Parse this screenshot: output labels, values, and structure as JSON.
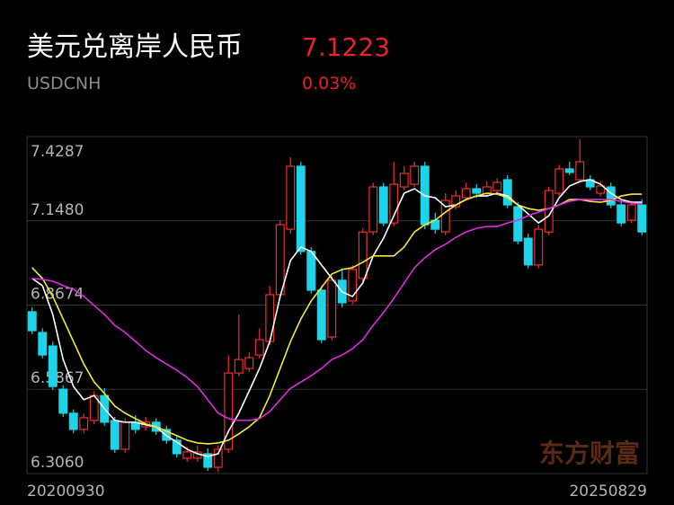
{
  "header": {
    "title": "美元兑离岸人民币",
    "code": "USDCNH",
    "price": "7.1223",
    "change": "0.03%"
  },
  "chart_data": {
    "type": "candlestick",
    "watermark": "东方财富",
    "up_color": "#f0302c",
    "down_color": "#1fd3e8",
    "categories": [
      "20200930",
      null,
      null,
      null,
      null,
      null,
      null,
      null,
      null,
      null,
      null,
      null,
      null,
      null,
      null,
      null,
      null,
      null,
      null,
      null,
      null,
      null,
      null,
      null,
      null,
      null,
      null,
      null,
      null,
      null,
      null,
      null,
      null,
      null,
      null,
      null,
      null,
      null,
      null,
      null,
      null,
      null,
      null,
      null,
      null,
      null,
      null,
      null,
      null,
      null,
      null,
      null,
      null,
      null,
      null,
      null,
      null,
      null,
      null,
      "20250829"
    ],
    "open": [
      6.845,
      6.776,
      6.731,
      6.587,
      6.507,
      6.453,
      6.483,
      6.566,
      6.483,
      6.387,
      6.477,
      6.462,
      6.477,
      6.453,
      6.417,
      6.357,
      6.357,
      6.372,
      6.327,
      6.387,
      6.641,
      6.656,
      6.701,
      6.746,
      6.902,
      7.12,
      7.33,
      7.046,
      6.917,
      6.761,
      6.95,
      6.881,
      6.956,
      7.111,
      7.261,
      7.141,
      7.261,
      7.27,
      7.33,
      7.15,
      7.111,
      7.195,
      7.225,
      7.255,
      7.24,
      7.249,
      7.285,
      7.195,
      7.09,
      7.001,
      7.111,
      7.24,
      7.321,
      7.285,
      7.285,
      7.24,
      7.261,
      7.201,
      7.15,
      7.201
    ],
    "high": [
      6.86,
      6.79,
      6.745,
      6.6,
      6.52,
      6.505,
      6.58,
      6.59,
      6.495,
      6.49,
      6.5,
      6.495,
      6.49,
      6.465,
      6.43,
      6.395,
      6.4,
      6.39,
      6.4,
      6.7,
      6.836,
      6.71,
      6.79,
      6.932,
      7.15,
      7.36,
      7.345,
      7.06,
      6.93,
      6.965,
      6.99,
      7.0,
      7.125,
      7.275,
      7.275,
      7.345,
      7.33,
      7.345,
      7.345,
      7.175,
      7.24,
      7.25,
      7.275,
      7.27,
      7.28,
      7.29,
      7.3,
      7.21,
      7.105,
      7.135,
      7.262,
      7.335,
      7.345,
      7.42,
      7.3,
      7.28,
      7.275,
      7.215,
      7.215,
      7.22
    ],
    "low": [
      6.77,
      6.69,
      6.585,
      6.495,
      6.44,
      6.44,
      6.47,
      6.465,
      6.375,
      6.375,
      6.44,
      6.45,
      6.435,
      6.405,
      6.36,
      6.345,
      6.345,
      6.315,
      6.312,
      6.375,
      6.63,
      6.645,
      6.69,
      6.735,
      6.89,
      7.105,
      7.035,
      6.905,
      6.74,
      6.75,
      6.86,
      6.87,
      6.945,
      7.1,
      7.13,
      7.13,
      7.25,
      7.26,
      7.12,
      7.105,
      7.1,
      7.185,
      7.215,
      7.225,
      7.23,
      7.24,
      7.19,
      7.07,
      6.99,
      6.99,
      7.1,
      7.23,
      7.3,
      7.275,
      7.25,
      7.23,
      7.19,
      7.13,
      7.14,
      7.1
    ],
    "close": [
      6.782,
      6.701,
      6.596,
      6.507,
      6.453,
      6.492,
      6.566,
      6.477,
      6.387,
      6.477,
      6.453,
      6.477,
      6.447,
      6.417,
      6.372,
      6.378,
      6.378,
      6.327,
      6.387,
      6.641,
      6.686,
      6.692,
      6.752,
      6.902,
      7.135,
      7.33,
      7.046,
      6.917,
      6.752,
      6.95,
      6.875,
      6.986,
      7.111,
      7.261,
      7.141,
      7.27,
      7.306,
      7.33,
      7.135,
      7.12,
      7.216,
      7.231,
      7.255,
      7.24,
      7.261,
      7.276,
      7.201,
      7.081,
      7.001,
      7.12,
      7.249,
      7.321,
      7.309,
      7.345,
      7.261,
      7.264,
      7.201,
      7.141,
      7.201,
      7.111
    ],
    "series": [
      {
        "color": "#ffffff",
        "values": [
          6.956,
          6.932,
          6.836,
          6.686,
          6.596,
          6.552,
          6.566,
          6.522,
          6.483,
          6.477,
          6.477,
          6.468,
          6.462,
          6.432,
          6.411,
          6.387,
          6.372,
          6.363,
          6.372,
          6.447,
          6.507,
          6.581,
          6.656,
          6.746,
          6.896,
          7.016,
          7.061,
          7.046,
          7.001,
          6.956,
          6.911,
          6.896,
          6.941,
          7.031,
          7.09,
          7.165,
          7.24,
          7.255,
          7.231,
          7.225,
          7.195,
          7.201,
          7.219,
          7.231,
          7.231,
          7.24,
          7.231,
          7.201,
          7.171,
          7.141,
          7.165,
          7.225,
          7.264,
          7.279,
          7.285,
          7.27,
          7.24,
          7.219,
          7.21,
          7.21
        ]
      },
      {
        "color": "#f5e83a",
        "values": [
          6.992,
          6.956,
          6.896,
          6.821,
          6.746,
          6.671,
          6.611,
          6.573,
          6.531,
          6.507,
          6.489,
          6.471,
          6.462,
          6.447,
          6.432,
          6.417,
          6.408,
          6.405,
          6.408,
          6.417,
          6.438,
          6.462,
          6.492,
          6.566,
          6.656,
          6.746,
          6.821,
          6.881,
          6.926,
          6.971,
          6.986,
          6.992,
          7.01,
          7.031,
          7.031,
          7.031,
          7.061,
          7.111,
          7.135,
          7.15,
          7.177,
          7.201,
          7.219,
          7.231,
          7.24,
          7.237,
          7.225,
          7.201,
          7.189,
          7.183,
          7.189,
          7.201,
          7.219,
          7.219,
          7.213,
          7.21,
          7.216,
          7.231,
          7.237,
          7.237
        ]
      },
      {
        "color": "#e02ee0",
        "values": [
          6.956,
          6.953,
          6.947,
          6.932,
          6.92,
          6.896,
          6.866,
          6.836,
          6.8,
          6.776,
          6.746,
          6.716,
          6.692,
          6.671,
          6.65,
          6.626,
          6.596,
          6.552,
          6.507,
          6.489,
          6.483,
          6.483,
          6.489,
          6.513,
          6.552,
          6.59,
          6.611,
          6.632,
          6.656,
          6.686,
          6.701,
          6.722,
          6.752,
          6.8,
          6.842,
          6.89,
          6.941,
          6.992,
          7.025,
          7.052,
          7.07,
          7.093,
          7.111,
          7.123,
          7.129,
          7.129,
          7.141,
          7.15,
          7.165,
          7.177,
          7.189,
          7.201,
          7.213,
          7.219,
          7.219,
          7.219,
          7.219,
          7.213,
          7.207,
          7.204
        ]
      }
    ],
    "ylim": [
      6.306,
      7.4287
    ],
    "yticks": [
      7.4287,
      {
        "value": 7.148,
        "label": "7.1480"
      },
      6.8674,
      6.5867,
      {
        "value": 6.306,
        "label": "6.3060"
      }
    ],
    "grid": true
  }
}
